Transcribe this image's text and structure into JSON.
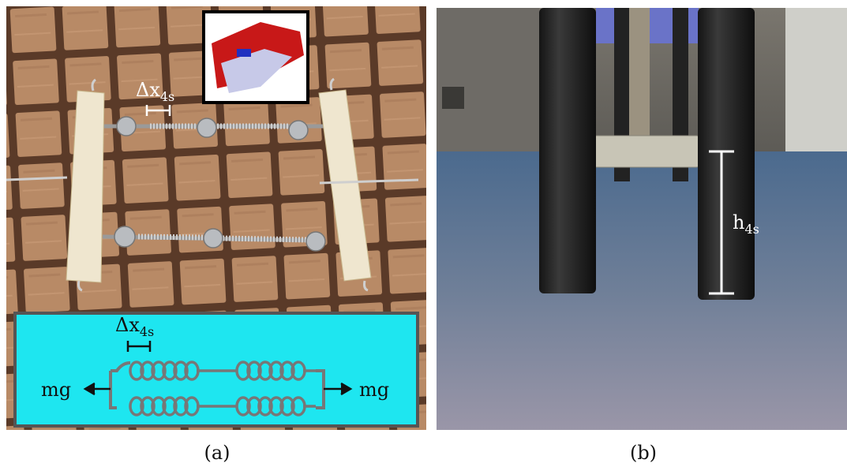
{
  "panel_a": {
    "photo_label": {
      "base": "Δx",
      "sub": "4s"
    },
    "diagram": {
      "delta_label": {
        "base": "Δx",
        "sub": "4s"
      },
      "left_force": "mg",
      "right_force": "mg"
    },
    "caption": "(a)"
  },
  "panel_b": {
    "height_label": {
      "base": "h",
      "sub": "4s"
    },
    "caption": "(b)"
  }
}
